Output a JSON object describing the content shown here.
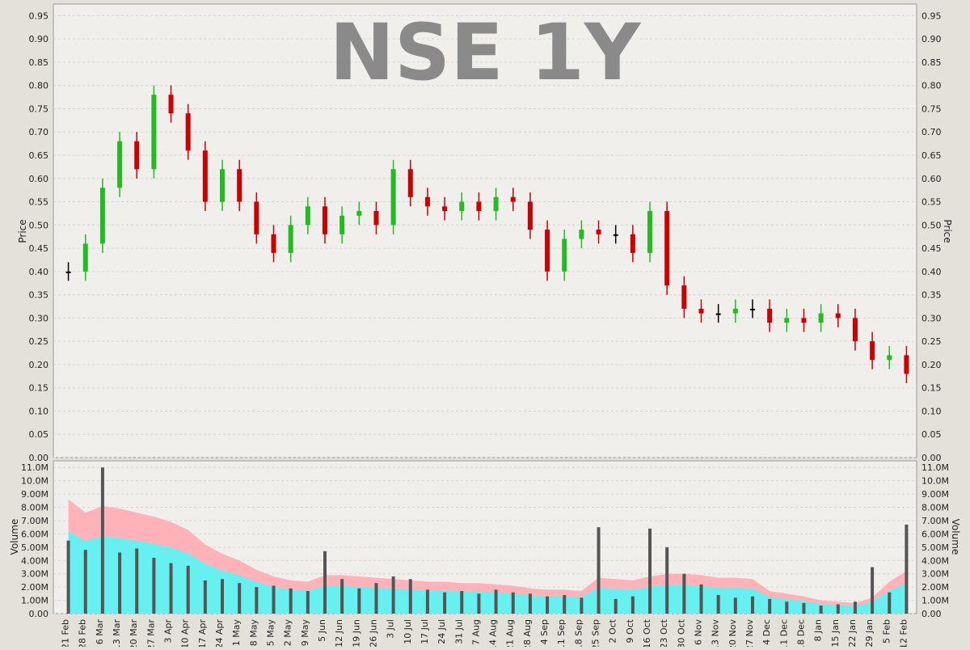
{
  "chart_data": [
    {
      "type": "candlestick",
      "title": "NSE 1Y",
      "ylabel": "Price",
      "ylim": [
        0,
        0.975
      ],
      "y_ticks": [
        "0.00",
        "0.05",
        "0.10",
        "0.15",
        "0.20",
        "0.25",
        "0.30",
        "0.35",
        "0.40",
        "0.45",
        "0.50",
        "0.55",
        "0.60",
        "0.65",
        "0.70",
        "0.75",
        "0.80",
        "0.85",
        "0.90",
        "0.95"
      ],
      "grid": true,
      "y_axis_sides": "left-and-right",
      "colors": {
        "up": "#22bb22",
        "down": "#cc0000",
        "flat": "#000000",
        "plot_bg": "#f0efeb"
      },
      "series": [
        {
          "x": "21 Feb",
          "close": 0.4
        },
        {
          "x": "28 Feb",
          "close": 0.46
        },
        {
          "x": "6 Mar",
          "close": 0.58
        },
        {
          "x": "13 Mar",
          "close": 0.68
        },
        {
          "x": "20 Mar",
          "close": 0.62
        },
        {
          "x": "27 Mar",
          "close": 0.78
        },
        {
          "x": "3 Apr",
          "close": 0.74
        },
        {
          "x": "10 Apr",
          "close": 0.66
        },
        {
          "x": "17 Apr",
          "close": 0.55
        },
        {
          "x": "24 Apr",
          "close": 0.62
        },
        {
          "x": "1 May",
          "close": 0.55
        },
        {
          "x": "8 May",
          "close": 0.48
        },
        {
          "x": "15 May",
          "close": 0.44
        },
        {
          "x": "22 May",
          "close": 0.5
        },
        {
          "x": "29 May",
          "close": 0.54
        },
        {
          "x": "5 Jun",
          "close": 0.48
        },
        {
          "x": "12 Jun",
          "close": 0.52
        },
        {
          "x": "19 Jun",
          "close": 0.53
        },
        {
          "x": "26 Jun",
          "close": 0.5
        },
        {
          "x": "3 Jul",
          "close": 0.62
        },
        {
          "x": "10 Jul",
          "close": 0.56
        },
        {
          "x": "17 Jul",
          "close": 0.54
        },
        {
          "x": "24 Jul",
          "close": 0.53
        },
        {
          "x": "31 Jul",
          "close": 0.55
        },
        {
          "x": "7 Aug",
          "close": 0.53
        },
        {
          "x": "14 Aug",
          "close": 0.56
        },
        {
          "x": "21 Aug",
          "close": 0.55
        },
        {
          "x": "28 Aug",
          "close": 0.49
        },
        {
          "x": "4 Sep",
          "close": 0.4
        },
        {
          "x": "11 Sep",
          "close": 0.47
        },
        {
          "x": "18 Sep",
          "close": 0.49
        },
        {
          "x": "25 Sep",
          "close": 0.48
        },
        {
          "x": "2 Oct",
          "close": 0.48
        },
        {
          "x": "9 Oct",
          "close": 0.44
        },
        {
          "x": "16 Oct",
          "close": 0.53
        },
        {
          "x": "23 Oct",
          "close": 0.37
        },
        {
          "x": "30 Oct",
          "close": 0.32
        },
        {
          "x": "6 Nov",
          "close": 0.31
        },
        {
          "x": "13 Nov",
          "close": 0.31
        },
        {
          "x": "20 Nov",
          "close": 0.32
        },
        {
          "x": "27 Nov",
          "close": 0.32
        },
        {
          "x": "4 Dec",
          "close": 0.29
        },
        {
          "x": "11 Dec",
          "close": 0.3
        },
        {
          "x": "18 Dec",
          "close": 0.29
        },
        {
          "x": "8 Jan",
          "close": 0.31
        },
        {
          "x": "15 Jan",
          "close": 0.3
        },
        {
          "x": "22 Jan",
          "close": 0.25
        },
        {
          "x": "29 Jan",
          "close": 0.21
        },
        {
          "x": "5 Feb",
          "close": 0.22
        },
        {
          "x": "12 Feb",
          "close": 0.18
        }
      ]
    },
    {
      "type": "bar",
      "ylabel": "Volume",
      "ylim": [
        0,
        11500000
      ],
      "y_ticks": [
        "0.00",
        "1.00M",
        "2.00M",
        "3.00M",
        "4.00M",
        "5.00M",
        "6.00M",
        "7.00M",
        "8.00M",
        "9.00M",
        "10.0M",
        "11.0M"
      ],
      "grid": true,
      "y_axis_sides": "left-and-right",
      "categories": [
        "21 Feb",
        "28 Feb",
        "6 Mar",
        "13 Mar",
        "20 Mar",
        "27 Mar",
        "3 Apr",
        "10 Apr",
        "17 Apr",
        "24 Apr",
        "1 May",
        "8 May",
        "15 May",
        "22 May",
        "29 May",
        "5 Jun",
        "12 Jun",
        "19 Jun",
        "26 Jun",
        "3 Jul",
        "10 Jul",
        "17 Jul",
        "24 Jul",
        "31 Jul",
        "7 Aug",
        "14 Aug",
        "21 Aug",
        "28 Aug",
        "4 Sep",
        "11 Sep",
        "18 Sep",
        "25 Sep",
        "2 Oct",
        "9 Oct",
        "16 Oct",
        "23 Oct",
        "30 Oct",
        "6 Nov",
        "13 Nov",
        "20 Nov",
        "27 Nov",
        "4 Dec",
        "11 Dec",
        "18 Dec",
        "8 Jan",
        "15 Jan",
        "22 Jan",
        "29 Jan",
        "5 Feb",
        "12 Feb"
      ],
      "series": [
        {
          "values": [
            5500000,
            4800000,
            11000000,
            4600000,
            4900000,
            4200000,
            3800000,
            3600000,
            2500000,
            2600000,
            2300000,
            2000000,
            2100000,
            1900000,
            1700000,
            4700000,
            2600000,
            1900000,
            2300000,
            2800000,
            2600000,
            1800000,
            1600000,
            1700000,
            1500000,
            1800000,
            1600000,
            1500000,
            1300000,
            1400000,
            1200000,
            6500000,
            1100000,
            1300000,
            6400000,
            5000000,
            3000000,
            2200000,
            1400000,
            1200000,
            1300000,
            1100000,
            900000,
            800000,
            600000,
            700000,
            900000,
            3500000,
            1600000,
            6700000
          ]
        },
        {
          "values": [
            8600000,
            7600000,
            8100000,
            7900000,
            7600000,
            7300000,
            6900000,
            6300000,
            5200000,
            4500000,
            4000000,
            3300000,
            2800000,
            2500000,
            2400000,
            2900000,
            2900000,
            2800000,
            2700000,
            2600000,
            2500000,
            2400000,
            2400000,
            2300000,
            2300000,
            2200000,
            2100000,
            1900000,
            1800000,
            1800000,
            1700000,
            2700000,
            2600000,
            2500000,
            2800000,
            3000000,
            3000000,
            2900000,
            2700000,
            2700000,
            2600000,
            1700000,
            1500000,
            1300000,
            1000000,
            900000,
            800000,
            1200000,
            2400000,
            3200000
          ]
        }
      ]
    }
  ]
}
